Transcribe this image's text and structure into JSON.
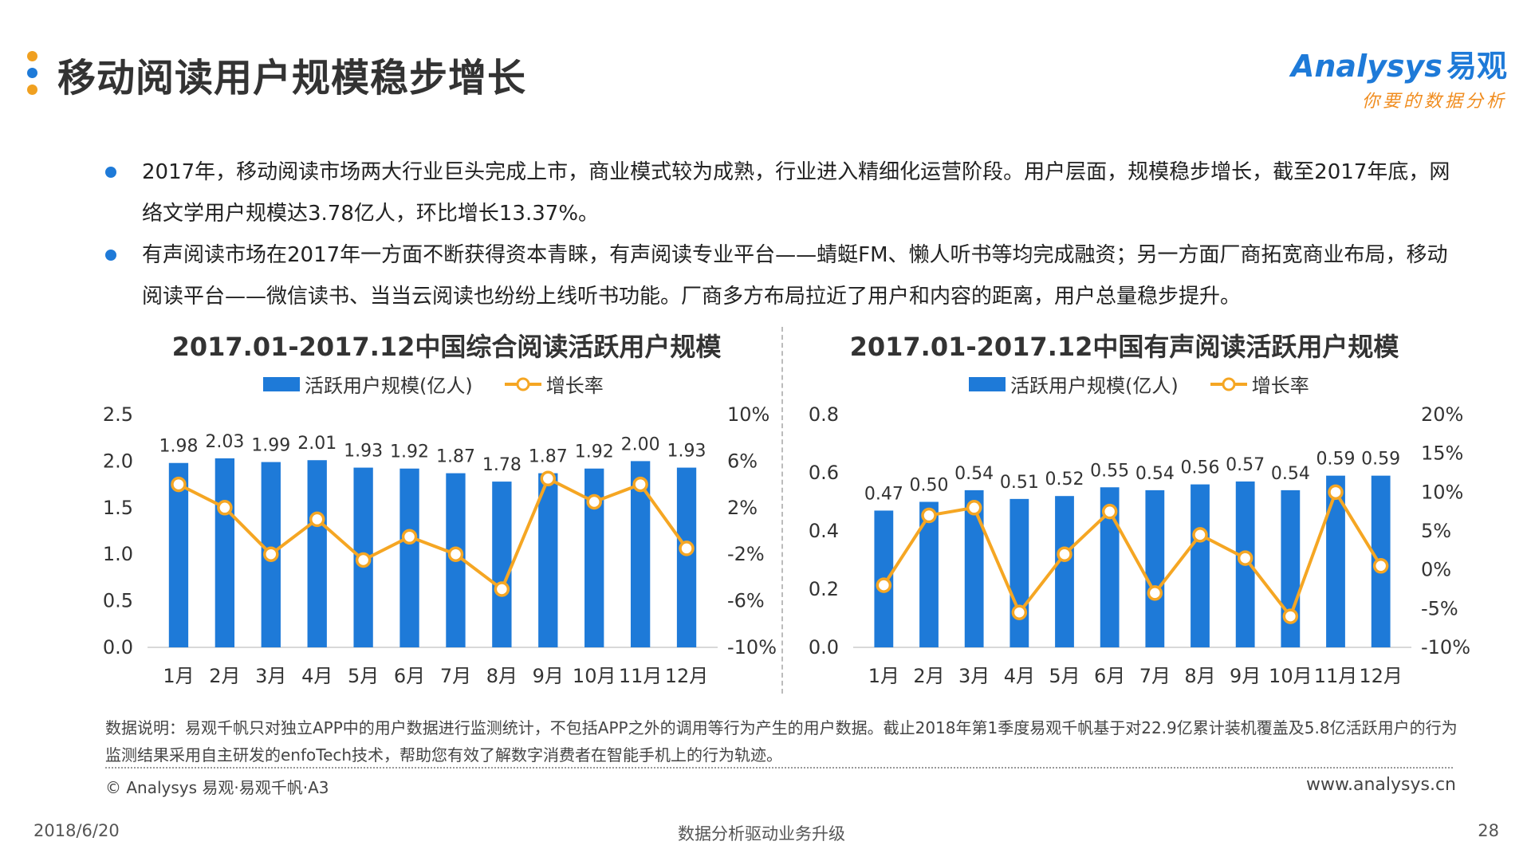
{
  "header": {
    "title": "移动阅读用户规模稳步增长",
    "dot_colors": [
      "#f0a020",
      "#1e7ad8",
      "#f0a020"
    ]
  },
  "logo": {
    "en": "Analysys",
    "cn": "易观",
    "tagline": "你要的数据分析"
  },
  "bullets": [
    "2017年，移动阅读市场两大行业巨头完成上市，商业模式较为成熟，行业进入精细化运营阶段。用户层面，规模稳步增长，截至2017年底，网络文学用户规模达3.78亿人，环比增长13.37%。",
    "有声阅读市场在2017年一方面不断获得资本青睐，有声阅读专业平台——蜻蜓FM、懒人听书等均完成融资；另一方面厂商拓宽商业布局，移动阅读平台——微信读书、当当云阅读也纷纷上线听书功能。厂商多方布局拉近了用户和内容的距离，用户总量稳步提升。"
  ],
  "colors": {
    "bar": "#1e7ad8",
    "line": "#f5a623"
  },
  "chart_data": [
    {
      "type": "bar",
      "title": "2017.01-2017.12中国综合阅读活跃用户规模",
      "categories": [
        "1月",
        "2月",
        "3月",
        "4月",
        "5月",
        "6月",
        "7月",
        "8月",
        "9月",
        "10月",
        "11月",
        "12月"
      ],
      "series": [
        {
          "name": "活跃用户规模(亿人)",
          "axis": "left",
          "values": [
            1.98,
            2.03,
            1.99,
            2.01,
            1.93,
            1.92,
            1.87,
            1.78,
            1.87,
            1.92,
            2.0,
            1.93
          ]
        },
        {
          "name": "增长率",
          "axis": "right",
          "type": "line",
          "values": [
            4.0,
            2.0,
            -2.0,
            1.0,
            -2.5,
            -0.5,
            -2.0,
            -5.0,
            4.5,
            2.5,
            4.0,
            -1.5
          ]
        }
      ],
      "ylim": [
        0,
        2.5
      ],
      "yticks": [
        "0.0",
        "0.5",
        "1.0",
        "1.5",
        "2.0",
        "2.5"
      ],
      "y2lim": [
        -10,
        10
      ],
      "y2ticks": [
        "-10%",
        "-6%",
        "-2%",
        "2%",
        "6%",
        "10%"
      ],
      "legend": "top"
    },
    {
      "type": "bar",
      "title": "2017.01-2017.12中国有声阅读活跃用户规模",
      "categories": [
        "1月",
        "2月",
        "3月",
        "4月",
        "5月",
        "6月",
        "7月",
        "8月",
        "9月",
        "10月",
        "11月",
        "12月"
      ],
      "series": [
        {
          "name": "活跃用户规模(亿人)",
          "axis": "left",
          "values": [
            0.47,
            0.5,
            0.54,
            0.51,
            0.52,
            0.55,
            0.54,
            0.56,
            0.57,
            0.54,
            0.59,
            0.59
          ]
        },
        {
          "name": "增长率",
          "axis": "right",
          "type": "line",
          "values": [
            -2.0,
            7.0,
            8.0,
            -5.5,
            2.0,
            7.5,
            -3.0,
            4.5,
            1.5,
            -6.0,
            10.0,
            0.5
          ]
        }
      ],
      "ylim": [
        0,
        0.8
      ],
      "yticks": [
        "0.0",
        "0.2",
        "0.4",
        "0.6",
        "0.8"
      ],
      "y2lim": [
        -10,
        20
      ],
      "y2ticks": [
        "-10%",
        "-5%",
        "0%",
        "5%",
        "10%",
        "15%",
        "20%"
      ],
      "legend": "top"
    }
  ],
  "note": "数据说明：易观千帆只对独立APP中的用户数据进行监测统计，不包括APP之外的调用等行为产生的用户数据。截止2018年第1季度易观千帆基于对22.9亿累计装机覆盖及5.8亿活跃用户的行为监测结果采用自主研发的enfoTech技术，帮助您有效了解数字消费者在智能手机上的行为轨迹。",
  "copyright": "© Analysys 易观·易观千帆·A3",
  "website": "www.analysys.cn",
  "footer": {
    "date": "2018/6/20",
    "slogan": "数据分析驱动业务升级",
    "page": "28"
  }
}
